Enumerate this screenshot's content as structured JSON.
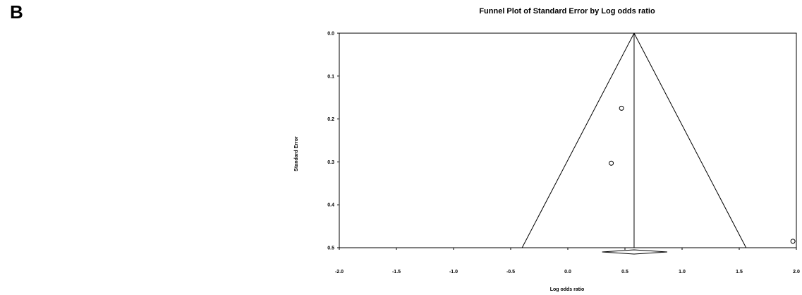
{
  "panel_label": "B",
  "chart_data": {
    "type": "scatter",
    "title": "Funnel Plot of Standard Error by Log odds ratio",
    "xlabel": "Log odds ratio",
    "ylabel": "Standard Error",
    "xlim": [
      -2.0,
      2.0
    ],
    "ylim": [
      0.0,
      0.5
    ],
    "y_inverted": true,
    "x_ticks": [
      "-2.0",
      "-1.5",
      "-1.0",
      "-0.5",
      "0.0",
      "0.5",
      "1.0",
      "1.5",
      "2.0"
    ],
    "y_ticks": [
      "0.0",
      "0.1",
      "0.2",
      "0.3",
      "0.4",
      "0.5"
    ],
    "points": [
      {
        "x": 0.47,
        "y": 0.175
      },
      {
        "x": 0.38,
        "y": 0.303
      },
      {
        "x": 1.97,
        "y": 0.485
      }
    ],
    "summary_estimate": 0.58,
    "summary_ci": [
      0.3,
      0.87
    ],
    "funnel_lines": true,
    "grid": false,
    "colors": {
      "line": "#000000",
      "marker_fill": "#ffffff"
    }
  }
}
